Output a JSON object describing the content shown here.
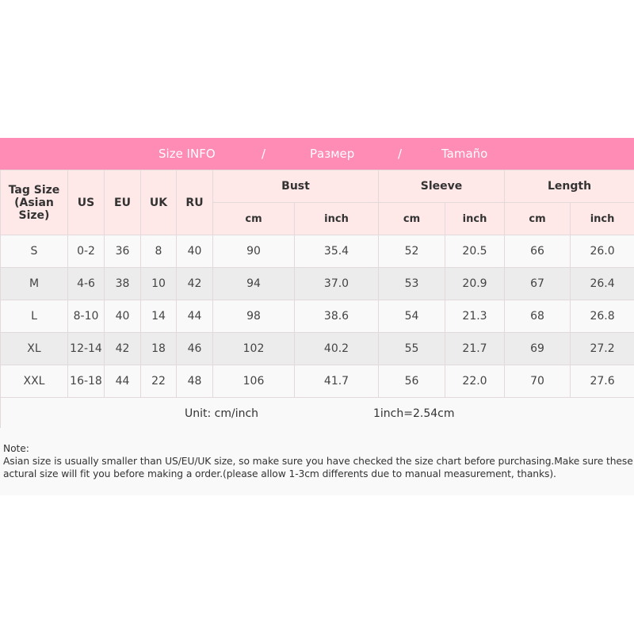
{
  "banner": {
    "title_en": "Size INFO",
    "sep": "/",
    "title_ru": "Размер",
    "title_es": "Tamaño",
    "color": "#fe8cb4"
  },
  "headers": {
    "tag": "Tag Size (Asian Size)",
    "us": "US",
    "eu": "EU",
    "uk": "UK",
    "ru": "RU",
    "bust": "Bust",
    "sleeve": "Sleeve",
    "length": "Length",
    "cm": "cm",
    "inch": "inch"
  },
  "rows": [
    [
      "S",
      "0-2",
      "36",
      "8",
      "40",
      "90",
      "35.4",
      "52",
      "20.5",
      "66",
      "26.0"
    ],
    [
      "M",
      "4-6",
      "38",
      "10",
      "42",
      "94",
      "37.0",
      "53",
      "20.9",
      "67",
      "26.4"
    ],
    [
      "L",
      "8-10",
      "40",
      "14",
      "44",
      "98",
      "38.6",
      "54",
      "21.3",
      "68",
      "26.8"
    ],
    [
      "XL",
      "12-14",
      "42",
      "18",
      "46",
      "102",
      "40.2",
      "55",
      "21.7",
      "69",
      "27.2"
    ],
    [
      "XXL",
      "16-18",
      "44",
      "22",
      "48",
      "106",
      "41.7",
      "56",
      "22.0",
      "70",
      "27.6"
    ]
  ],
  "unit": {
    "label": "Unit: cm/inch",
    "conversion": "1inch=2.54cm"
  },
  "note": {
    "title": "Note:",
    "text": "Asian size is usually smaller than US/EU/UK size, so make sure you have checked the size chart before purchasing.Make sure these actural size will fit you before making a order.(please allow 1-3cm differents due to manual measurement, thanks)."
  }
}
